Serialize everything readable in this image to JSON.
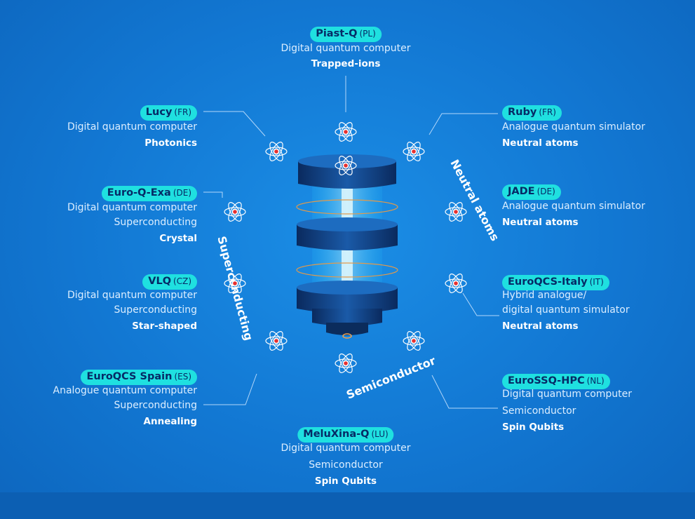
{
  "colors": {
    "background": "#1277d2",
    "pill": "#1fe0e0",
    "pill_text": "#062a66",
    "accent_core": "#e63030"
  },
  "categories": {
    "superconducting": "Superconducting",
    "neutral_atoms": "Neutral atoms",
    "semiconductor": "Semiconductor"
  },
  "systems": [
    {
      "id": "piast",
      "name": "Piast-Q",
      "country": "(PL)",
      "lines": [
        "Digital quantum computer"
      ],
      "tech": "Trapped-ions"
    },
    {
      "id": "lucy",
      "name": "Lucy",
      "country": "(FR)",
      "lines": [
        "Digital quantum computer"
      ],
      "tech": "Photonics"
    },
    {
      "id": "ruby",
      "name": "Ruby",
      "country": "(FR)",
      "lines": [
        "Analogue quantum simulator"
      ],
      "tech": "Neutral atoms"
    },
    {
      "id": "euroqexa",
      "name": "Euro-Q-Exa",
      "country": "(DE)",
      "lines": [
        "Digital quantum computer",
        "Superconducting"
      ],
      "tech": "Crystal"
    },
    {
      "id": "jade",
      "name": "JADE",
      "country": "(DE)",
      "lines": [
        "Analogue quantum simulator"
      ],
      "tech": "Neutral atoms"
    },
    {
      "id": "vlq",
      "name": "VLQ",
      "country": "(CZ)",
      "lines": [
        "Digital quantum computer",
        "Superconducting"
      ],
      "tech": "Star-shaped"
    },
    {
      "id": "italy",
      "name": "EuroQCS-Italy",
      "country": "(IT)",
      "lines": [
        "Hybrid analogue/",
        "digital quantum simulator"
      ],
      "tech": "Neutral atoms"
    },
    {
      "id": "spain",
      "name": "EuroQCS Spain",
      "country": "(ES)",
      "lines": [
        "Analogue quantum computer",
        "Superconducting"
      ],
      "tech": "Annealing"
    },
    {
      "id": "eurossq",
      "name": "EuroSSQ-HPC",
      "country": "(NL)",
      "lines": [
        "Digital quantum computer",
        "Semiconductor"
      ],
      "tech": "Spin Qubits"
    },
    {
      "id": "meluxina",
      "name": "MeluXina-Q",
      "country": "(LU)",
      "lines": [
        "Digital quantum computer",
        "Semiconductor"
      ],
      "tech": "Spin Qubits"
    }
  ]
}
